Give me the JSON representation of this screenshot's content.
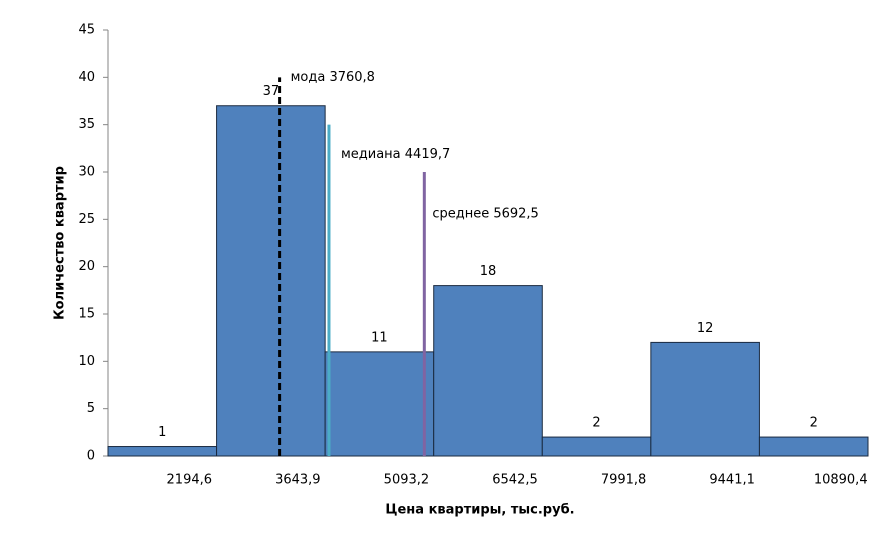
{
  "chart_data": {
    "type": "bar",
    "x_title": "Цена квартиры, тыс.руб.",
    "y_title": "Количество квартир",
    "x": [
      {
        "value": 2194.6,
        "label": "2194,6"
      },
      {
        "value": 3643.9,
        "label": "3643,9"
      },
      {
        "value": 5093.2,
        "label": "5093,2"
      },
      {
        "value": 6542.5,
        "label": "6542,5"
      },
      {
        "value": 7991.8,
        "label": "7991,8"
      },
      {
        "value": 9441.1,
        "label": "9441,1"
      },
      {
        "value": 10890.4,
        "label": "10890,4"
      }
    ],
    "values": [
      1,
      37,
      11,
      18,
      2,
      12,
      2
    ],
    "color": "#4f81bd",
    "xlim": [
      1469.95,
      11615.05
    ],
    "ylim": [
      0,
      45
    ],
    "yticks": [
      0,
      5,
      10,
      15,
      20,
      25,
      30,
      35,
      40,
      45
    ],
    "annotations": [
      {
        "x": 3760.8,
        "top": 40,
        "label": "мода 3760,8",
        "color": "#000000",
        "dashed": true
      },
      {
        "x": 4419.7,
        "top": 35,
        "label": "медиана 4419,7",
        "color": "#4bacc6",
        "dashed": false
      },
      {
        "x": 5692.5,
        "top": 30,
        "label": "среднее 5692,5",
        "color": "#8064a2",
        "dashed": false
      }
    ]
  }
}
